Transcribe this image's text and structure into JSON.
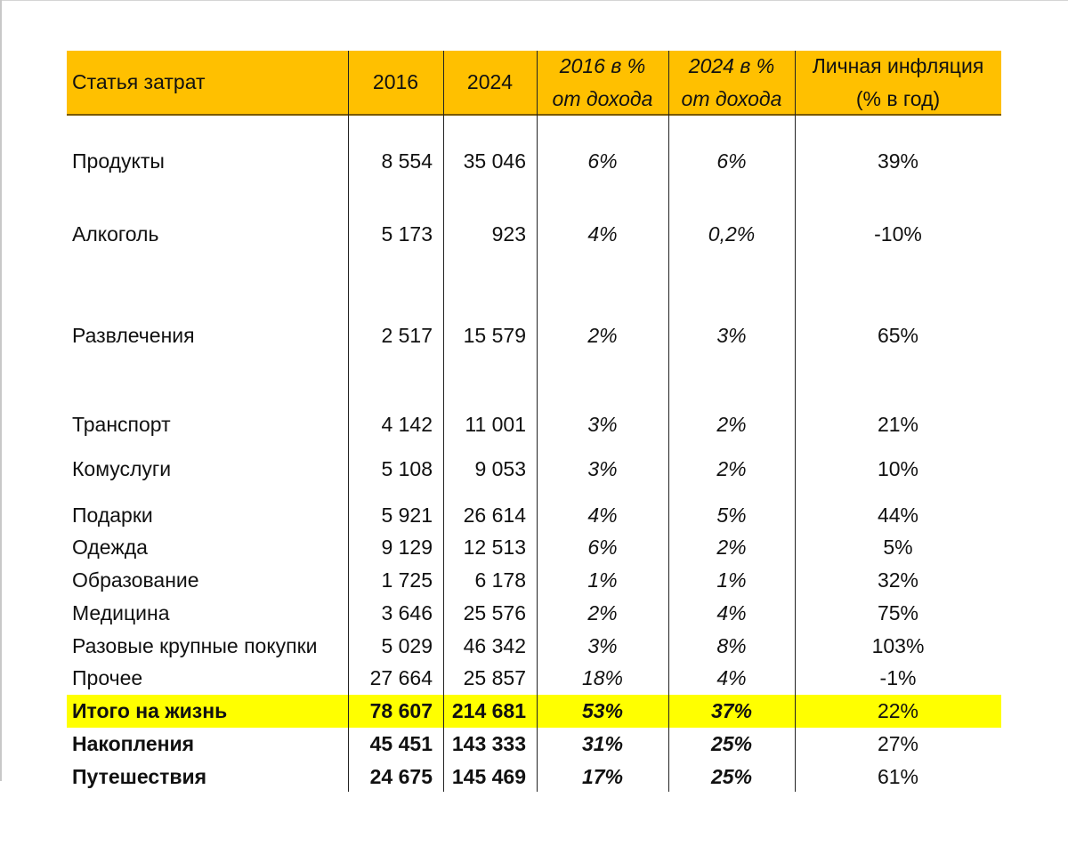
{
  "columns": {
    "item": "Статья затрат",
    "y2016": "2016",
    "y2024": "2024",
    "pct2016_l1": "2016 в %",
    "pct2016_l2": "от дохода",
    "pct2024_l1": "2024 в %",
    "pct2024_l2": "от дохода",
    "infl_l1": "Личная инфляция",
    "infl_l2": "(% в год)"
  },
  "rows": [
    {
      "item": "Продукты",
      "y2016": "8 554",
      "y2024": "35 046",
      "pct2016": "6%",
      "pct2024": "6%",
      "inflation": "39%"
    },
    {
      "item": "Алкоголь",
      "y2016": "5 173",
      "y2024": "923",
      "pct2016": "4%",
      "pct2024": "0,2%",
      "inflation": "-10%"
    },
    {
      "item": "Развлечения",
      "y2016": "2 517",
      "y2024": "15 579",
      "pct2016": "2%",
      "pct2024": "3%",
      "inflation": "65%"
    },
    {
      "item": "Транспорт",
      "y2016": "4 142",
      "y2024": "11 001",
      "pct2016": "3%",
      "pct2024": "2%",
      "inflation": "21%"
    },
    {
      "item": "Комуслуги",
      "y2016": "5 108",
      "y2024": "9 053",
      "pct2016": "3%",
      "pct2024": "2%",
      "inflation": "10%"
    },
    {
      "item": "Подарки",
      "y2016": "5 921",
      "y2024": "26 614",
      "pct2016": "4%",
      "pct2024": "5%",
      "inflation": "44%"
    },
    {
      "item": "Одежда",
      "y2016": "9 129",
      "y2024": "12 513",
      "pct2016": "6%",
      "pct2024": "2%",
      "inflation": "5%"
    },
    {
      "item": "Образование",
      "y2016": "1 725",
      "y2024": "6 178",
      "pct2016": "1%",
      "pct2024": "1%",
      "inflation": "32%"
    },
    {
      "item": "Медицина",
      "y2016": "3 646",
      "y2024": "25 576",
      "pct2016": "2%",
      "pct2024": "4%",
      "inflation": "75%"
    },
    {
      "item": "Разовые крупные покупки",
      "y2016": "5 029",
      "y2024": "46 342",
      "pct2016": "3%",
      "pct2024": "8%",
      "inflation": "103%"
    },
    {
      "item": "Прочее",
      "y2016": "27 664",
      "y2024": "25 857",
      "pct2016": "18%",
      "pct2024": "4%",
      "inflation": "-1%"
    }
  ],
  "total": {
    "item": "Итого на жизнь",
    "y2016": "78 607",
    "y2024": "214 681",
    "pct2016": "53%",
    "pct2024": "37%",
    "inflation": "22%"
  },
  "extra": [
    {
      "item": "Накопления",
      "y2016": "45 451",
      "y2024": "143 333",
      "pct2016": "31%",
      "pct2024": "25%",
      "inflation": "27%"
    },
    {
      "item": "Путешествия",
      "y2016": "24 675",
      "y2024": "145 469",
      "pct2016": "17%",
      "pct2024": "25%",
      "inflation": "61%"
    }
  ],
  "colors": {
    "header": "#ffc000",
    "total_highlight": "#ffff00"
  }
}
